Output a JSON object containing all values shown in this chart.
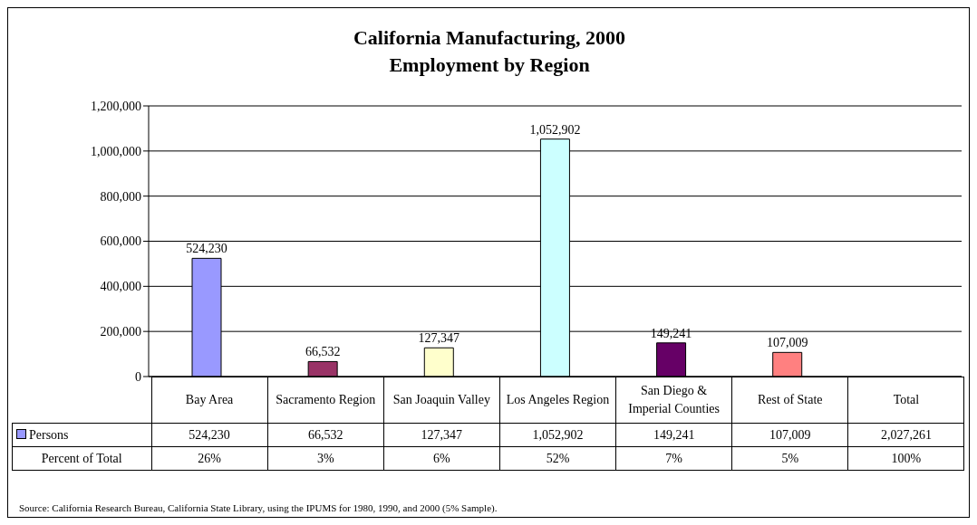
{
  "chart_data": {
    "type": "bar",
    "title": "California Manufacturing, 2000",
    "subtitle": "Employment by Region",
    "categories": [
      "Bay Area",
      "Sacramento Region",
      "San Joaquin Valley",
      "Los Angeles Region",
      "San Diego & Imperial Counties",
      "Rest of State",
      "Total"
    ],
    "series": [
      {
        "name": "Persons",
        "color": "#9999ff",
        "colors": [
          "#9999ff",
          "#993366",
          "#ffffcc",
          "#ccffff",
          "#660066",
          "#ff8080",
          null
        ],
        "values": [
          524230,
          66532,
          127347,
          1052902,
          149241,
          107009,
          null
        ],
        "value_labels": [
          "524,230",
          "66,532",
          "127,347",
          "1,052,902",
          "149,241",
          "107,009",
          "2,027,261"
        ]
      }
    ],
    "ylim": [
      0,
      1200000
    ],
    "yticks": [
      {
        "value": 0,
        "label": "0"
      },
      {
        "value": 200000,
        "label": "200,000"
      },
      {
        "value": 400000,
        "label": "400,000"
      },
      {
        "value": 600000,
        "label": "600,000"
      },
      {
        "value": 800000,
        "label": "800,000"
      },
      {
        "value": 1000000,
        "label": "1,000,000"
      },
      {
        "value": 1200000,
        "label": "1,200,000"
      }
    ],
    "grid": "y",
    "legend": "bottom",
    "data_labels": true,
    "annotations": [
      "Percent of Total",
      "26%",
      "3%",
      "6%",
      "52%",
      "7%",
      "5%",
      "100%",
      "Source:  California Research Bureau, California State Library, using the IPUMS for 1980, 1990, and 2000 (5% Sample)."
    ]
  }
}
